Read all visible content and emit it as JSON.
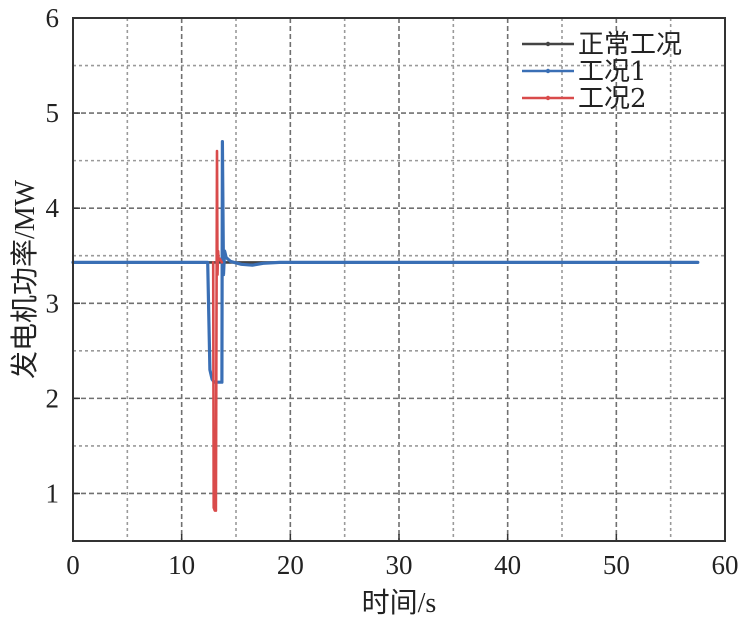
{
  "chart_data": {
    "type": "line",
    "title": "",
    "xlabel": "时间/s",
    "ylabel": "发电机功率/MW",
    "xlim": [
      0,
      60
    ],
    "ylim": [
      0.5,
      6
    ],
    "xticks": [
      0,
      10,
      20,
      30,
      40,
      50,
      60
    ],
    "yticks": [
      1,
      2,
      3,
      4,
      5,
      6
    ],
    "xtick_labels": [
      "0",
      "10",
      "20",
      "30",
      "40",
      "50",
      "60"
    ],
    "ytick_labels": [
      "1",
      "2",
      "3",
      "4",
      "5",
      "6"
    ],
    "grid": true,
    "legend_position": "top-right",
    "series": [
      {
        "name": "正常工况",
        "color": "#444444",
        "x": [
          0,
          12.3,
          13.0,
          13.5,
          14.0,
          57.5
        ],
        "y": [
          3.43,
          3.43,
          3.43,
          3.43,
          3.43,
          3.43
        ]
      },
      {
        "name": "工况1",
        "color": "#3a6fb5",
        "x": [
          0,
          12.4,
          12.6,
          12.8,
          13.0,
          13.3,
          13.7,
          13.75,
          13.85,
          13.95,
          14.1,
          14.5,
          15.5,
          16.5,
          17.5,
          19,
          20,
          57.5
        ],
        "y": [
          3.43,
          3.43,
          2.3,
          2.2,
          2.17,
          2.17,
          2.17,
          4.7,
          3.3,
          3.55,
          3.48,
          3.44,
          3.41,
          3.4,
          3.42,
          3.43,
          3.43,
          3.43
        ]
      },
      {
        "name": "工况2",
        "color": "#d94b4b",
        "x": [
          12.9,
          12.95,
          13.05,
          13.15,
          13.25,
          13.3,
          13.35,
          13.4,
          13.5,
          13.7
        ],
        "y": [
          3.43,
          0.85,
          0.82,
          0.82,
          4.6,
          3.3,
          3.55,
          3.45,
          3.47,
          3.43
        ]
      }
    ]
  }
}
